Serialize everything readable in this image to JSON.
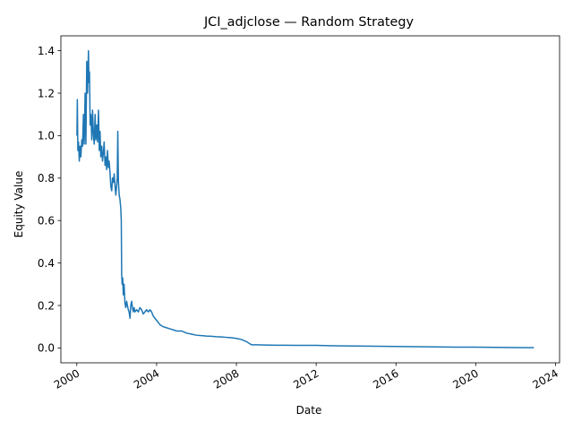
{
  "chart_data": {
    "type": "line",
    "title": "JCI_adjclose — Random Strategy",
    "xlabel": "Date",
    "ylabel": "Equity Value",
    "x_axis_type": "date",
    "xlim": [
      "1999-03-15",
      "2024-03-15"
    ],
    "ylim": [
      -0.07,
      1.47
    ],
    "xticks": [
      "2000",
      "2004",
      "2008",
      "2012",
      "2016",
      "2020",
      "2024"
    ],
    "yticks": [
      "0.0",
      "0.2",
      "0.4",
      "0.6",
      "0.8",
      "1.0",
      "1.2",
      "1.4"
    ],
    "grid": false,
    "legend": "none",
    "colors": {
      "line": "#1f77b4"
    },
    "series": [
      {
        "x": [
          "2000-01-03",
          "2000-01-10",
          "2000-01-20",
          "2000-02-01",
          "2000-02-15",
          "2000-03-01",
          "2000-03-15",
          "2000-04-01",
          "2000-04-15",
          "2000-05-01",
          "2000-05-15",
          "2000-06-01",
          "2000-06-15",
          "2000-07-01",
          "2000-07-15",
          "2000-08-01",
          "2000-08-10",
          "2000-08-20",
          "2000-09-01",
          "2000-09-15",
          "2000-10-01",
          "2000-10-15",
          "2000-11-01",
          "2000-11-15",
          "2000-12-01",
          "2000-12-15",
          "2001-01-01",
          "2001-01-15",
          "2001-02-01",
          "2001-02-15",
          "2001-03-01",
          "2001-03-15",
          "2001-04-01",
          "2001-04-15",
          "2001-05-01",
          "2001-05-15",
          "2001-06-01",
          "2001-06-15",
          "2001-07-01",
          "2001-07-15",
          "2001-08-01",
          "2001-08-15",
          "2001-09-01",
          "2001-09-15",
          "2001-10-01",
          "2001-10-15",
          "2001-11-01",
          "2001-11-15",
          "2001-12-01",
          "2001-12-15",
          "2002-01-01",
          "2002-01-10",
          "2002-01-20",
          "2002-02-01",
          "2002-02-15",
          "2002-03-01",
          "2002-03-15",
          "2002-03-25",
          "2002-04-01",
          "2002-04-10",
          "2002-04-20",
          "2002-05-01",
          "2002-05-15",
          "2002-06-01",
          "2002-06-15",
          "2002-07-01",
          "2002-07-15",
          "2002-08-01",
          "2002-08-15",
          "2002-09-01",
          "2002-09-15",
          "2002-10-01",
          "2002-10-15",
          "2002-11-01",
          "2002-11-15",
          "2002-12-01",
          "2003-01-01",
          "2003-02-01",
          "2003-03-01",
          "2003-04-01",
          "2003-05-01",
          "2003-06-01",
          "2003-07-01",
          "2003-08-01",
          "2003-09-01",
          "2003-10-01",
          "2003-11-01",
          "2003-12-01",
          "2004-01-01",
          "2004-03-01",
          "2004-05-01",
          "2004-07-01",
          "2004-09-01",
          "2004-11-01",
          "2005-01-01",
          "2005-04-01",
          "2005-07-01",
          "2005-10-01",
          "2006-01-01",
          "2006-04-01",
          "2006-07-01",
          "2006-10-01",
          "2007-01-01",
          "2007-04-01",
          "2007-07-01",
          "2007-10-01",
          "2008-01-01",
          "2008-04-01",
          "2008-07-01",
          "2008-09-01",
          "2008-10-01",
          "2008-11-01",
          "2009-01-01",
          "2009-06-01",
          "2010-01-01",
          "2010-06-01",
          "2011-01-01",
          "2011-06-01",
          "2012-01-01",
          "2012-06-01",
          "2013-01-01",
          "2014-01-01",
          "2015-01-01",
          "2016-01-01",
          "2017-01-01",
          "2018-01-01",
          "2019-01-01",
          "2020-01-01",
          "2021-01-01",
          "2022-01-01",
          "2022-12-01"
        ],
        "y": [
          1.0,
          1.17,
          0.93,
          0.97,
          0.88,
          0.95,
          0.9,
          0.98,
          0.95,
          1.1,
          0.96,
          1.2,
          0.96,
          1.35,
          1.2,
          1.4,
          1.25,
          1.3,
          1.05,
          1.1,
          0.98,
          1.12,
          1.0,
          0.96,
          1.1,
          0.98,
          1.05,
          0.97,
          1.12,
          0.93,
          1.02,
          0.9,
          0.95,
          0.88,
          0.92,
          0.97,
          0.86,
          0.9,
          0.84,
          0.93,
          0.85,
          0.88,
          0.82,
          0.76,
          0.74,
          0.8,
          0.78,
          0.82,
          0.76,
          0.72,
          0.77,
          0.8,
          1.02,
          0.78,
          0.72,
          0.7,
          0.66,
          0.6,
          0.35,
          0.3,
          0.33,
          0.25,
          0.3,
          0.21,
          0.19,
          0.22,
          0.2,
          0.18,
          0.17,
          0.14,
          0.2,
          0.22,
          0.19,
          0.17,
          0.19,
          0.17,
          0.18,
          0.17,
          0.19,
          0.18,
          0.16,
          0.17,
          0.18,
          0.17,
          0.18,
          0.17,
          0.15,
          0.14,
          0.13,
          0.11,
          0.1,
          0.095,
          0.09,
          0.085,
          0.08,
          0.08,
          0.07,
          0.065,
          0.06,
          0.058,
          0.056,
          0.055,
          0.053,
          0.052,
          0.05,
          0.048,
          0.045,
          0.04,
          0.03,
          0.02,
          0.015,
          0.015,
          0.015,
          0.014,
          0.013,
          0.013,
          0.012,
          0.012,
          0.012,
          0.011,
          0.01,
          0.009,
          0.008,
          0.007,
          0.006,
          0.005,
          0.004,
          0.004,
          0.003,
          0.002,
          0.001
        ]
      }
    ]
  }
}
